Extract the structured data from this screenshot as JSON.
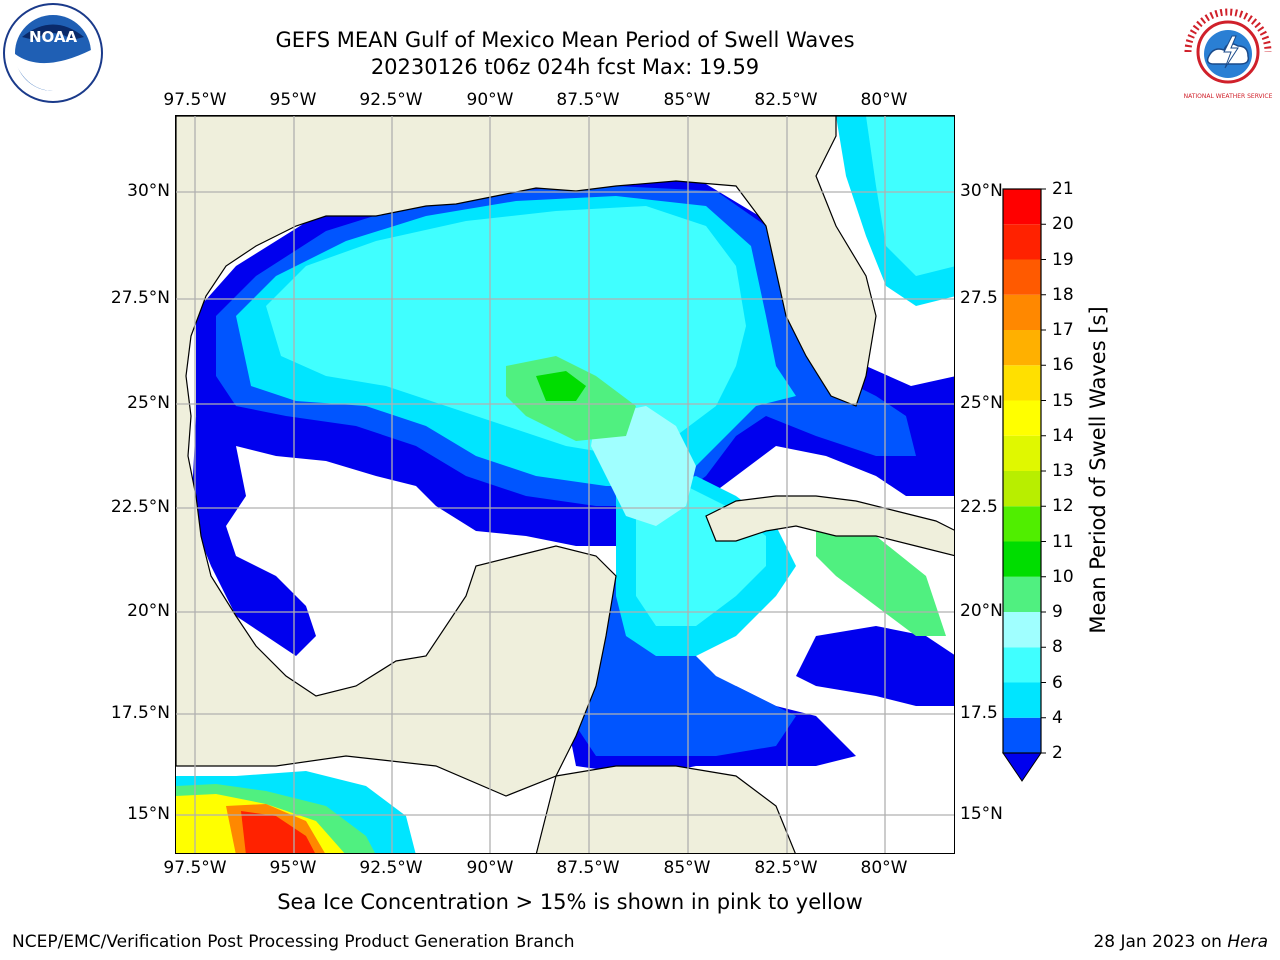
{
  "title_line1": "GEFS MEAN Gulf of Mexico Mean Period of Swell Waves",
  "title_line2": "20230126 t06z 024h fcst   Max: 19.59",
  "lon_ticks_top": [
    "97.5°W",
    "95°W",
    "92.5°W",
    "90°W",
    "87.5°W",
    "85°W",
    "82.5°W",
    "80°W"
  ],
  "lon_ticks_bottom": [
    "97.5°W",
    "95°W",
    "92.5°W",
    "90°W",
    "87.5°W",
    "85°W",
    "82.5°W",
    "80°W"
  ],
  "lat_ticks_left": [
    "30°N",
    "27.5°N",
    "25°N",
    "22.5°N",
    "20°N",
    "17.5°N",
    "15°N"
  ],
  "lat_ticks_right": [
    "30°N",
    "27.5",
    "25°N",
    "22.5",
    "20°N",
    "17.5",
    "15°N"
  ],
  "colorbar": {
    "label": "Mean Period of Swell Waves [s]",
    "ticks": [
      "2",
      "4",
      "6",
      "8",
      "9",
      "10",
      "11",
      "12",
      "13",
      "14",
      "15",
      "16",
      "17",
      "18",
      "19",
      "20",
      "21"
    ],
    "colors": [
      "#0055ff",
      "#00e5ff",
      "#40ffff",
      "#a0ffff",
      "#50f080",
      "#00dd00",
      "#50ee00",
      "#b8ee00",
      "#e0f800",
      "#ffff00",
      "#ffe000",
      "#ffb000",
      "#ff8800",
      "#ff5a00",
      "#ff2200",
      "#ff0000"
    ],
    "under_color": "#0000ee"
  },
  "sea_ice_note": "Sea Ice Concentration > 15% is shown in pink to yellow",
  "footer_left": "NCEP/EMC/Verification Post Processing Product Generation Branch",
  "footer_right_date": "28 Jan 2023 on",
  "footer_right_host": "Hera",
  "logos": {
    "left": "NOAA",
    "right": "NATIONAL WEATHER SERVICE"
  },
  "colors": {
    "land": "#efefdc",
    "grid": "#b0b0b0"
  }
}
